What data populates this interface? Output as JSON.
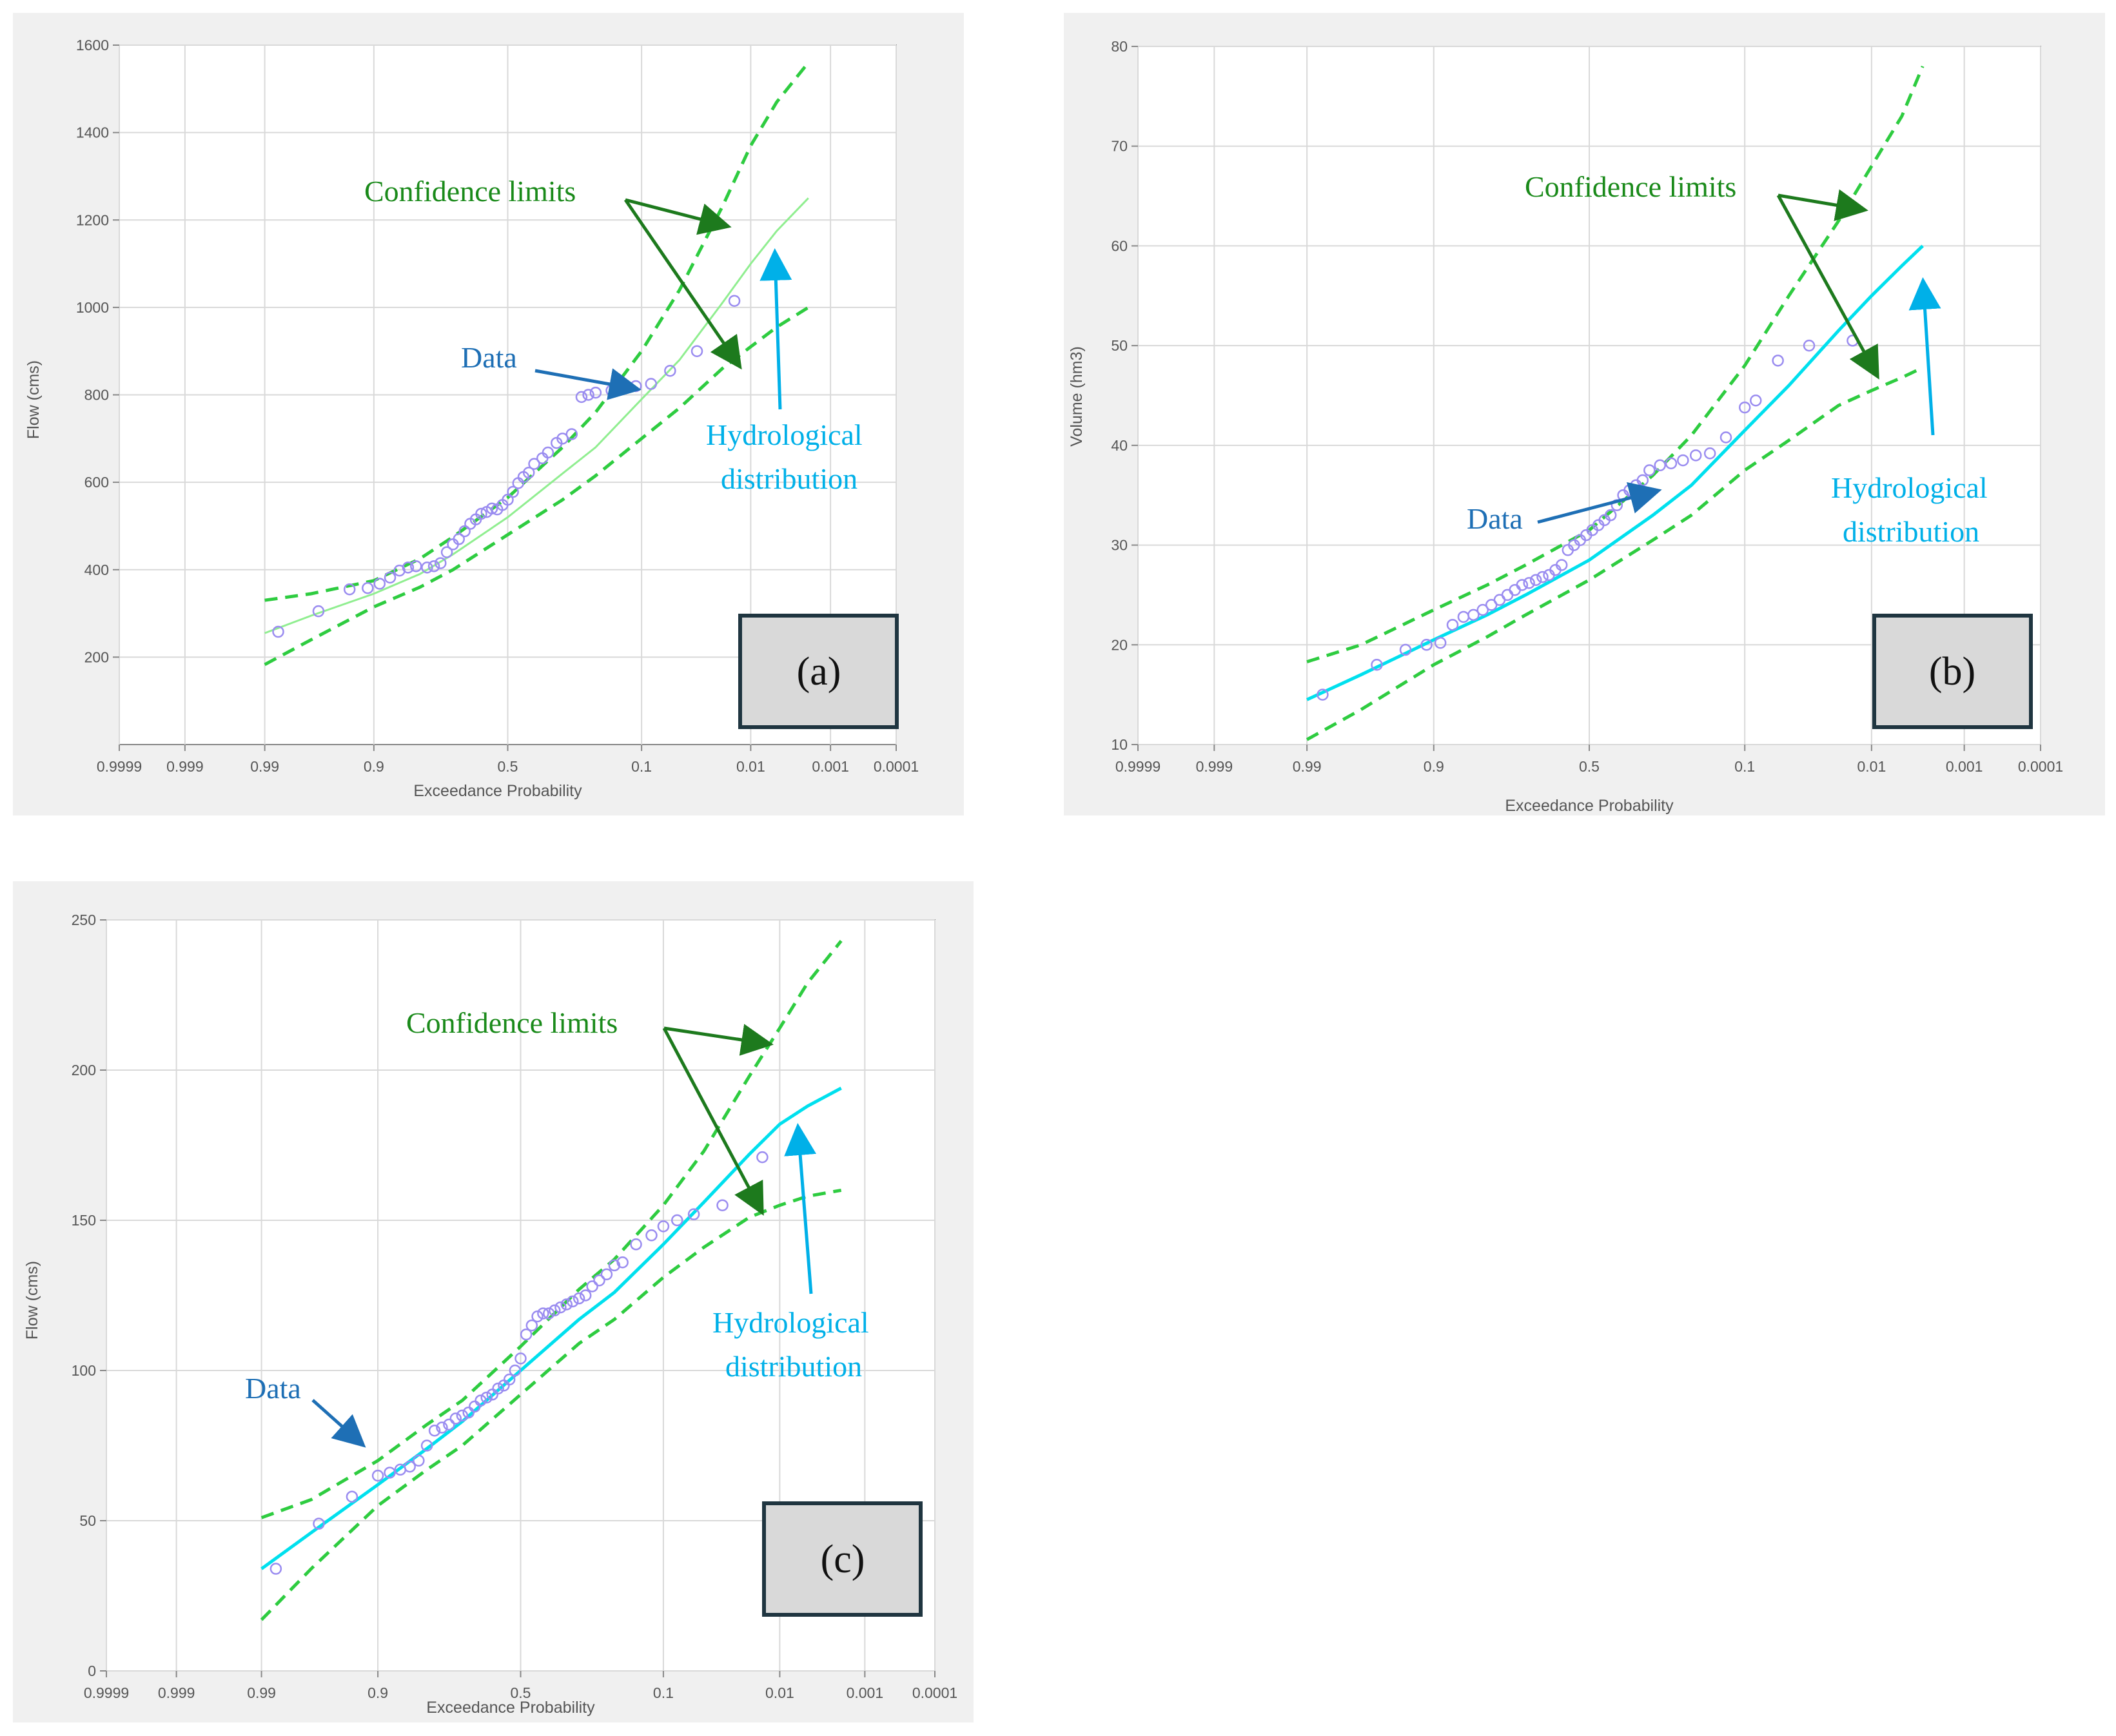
{
  "colors": {
    "confidence": "#2ecc40",
    "confidence_label": "#1a8a1a",
    "confidence_arrow": "#1d7a1d",
    "fit_a": "#90ee90",
    "fit_bc": "#00e0ee",
    "distribution_label": "#00b0e8",
    "data_marker": "#9a8cf0",
    "data_label": "#1e6fb5",
    "grid": "#d9d9d9",
    "panel_bg": "#f0f0f0"
  },
  "chart_data": [
    {
      "type": "scatter",
      "panel_label": "(a)",
      "xlabel": "Exceedance Probability",
      "ylabel": "Flow (cms)",
      "x_scale": "normal-probability (reversed)",
      "x_ticks": [
        "0.9999",
        "0.999",
        "0.99",
        "0.9",
        "0.5",
        "0.1",
        "0.01",
        "0.001",
        "0.0001"
      ],
      "x_tick_values": [
        0.9999,
        0.999,
        0.99,
        0.9,
        0.5,
        0.1,
        0.01,
        0.001,
        0.0001
      ],
      "y_ticks": [
        "200",
        "400",
        "600",
        "800",
        "1000",
        "1200",
        "1400",
        "1600"
      ],
      "ylim": [
        0,
        1600
      ],
      "grid": true,
      "annotations": {
        "confidence": "Confidence limits",
        "data": "Data",
        "distribution_line1": "Hydrological",
        "distribution_line2": "distribution"
      },
      "series": [
        {
          "name": "Data",
          "kind": "markers",
          "x": [
            0.986,
            0.965,
            0.935,
            0.91,
            0.89,
            0.87,
            0.85,
            0.83,
            0.81,
            0.78,
            0.76,
            0.74,
            0.72,
            0.7,
            0.68,
            0.66,
            0.64,
            0.62,
            0.6,
            0.58,
            0.56,
            0.54,
            0.52,
            0.5,
            0.48,
            0.46,
            0.44,
            0.42,
            0.4,
            0.37,
            0.35,
            0.32,
            0.3,
            0.27,
            0.24,
            0.22,
            0.2,
            0.16,
            0.13,
            0.11,
            0.085,
            0.06,
            0.035,
            0.015
          ],
          "y": [
            258,
            305,
            355,
            358,
            368,
            382,
            398,
            405,
            408,
            405,
            408,
            415,
            440,
            458,
            470,
            488,
            505,
            515,
            528,
            532,
            540,
            538,
            548,
            560,
            578,
            598,
            612,
            622,
            642,
            655,
            668,
            690,
            700,
            710,
            795,
            800,
            805,
            810,
            815,
            820,
            825,
            855,
            900,
            1015
          ]
        },
        {
          "name": "Hydrological distribution",
          "kind": "line",
          "x": [
            0.99,
            0.97,
            0.9,
            0.8,
            0.7,
            0.5,
            0.3,
            0.2,
            0.1,
            0.05,
            0.02,
            0.01,
            0.005,
            0.002
          ],
          "y": [
            255,
            295,
            345,
            390,
            435,
            520,
            620,
            680,
            790,
            880,
            1010,
            1100,
            1175,
            1250
          ]
        },
        {
          "name": "Upper confidence limit",
          "kind": "dashed",
          "x": [
            0.99,
            0.97,
            0.9,
            0.8,
            0.7,
            0.5,
            0.3,
            0.2,
            0.1,
            0.05,
            0.02,
            0.01,
            0.005,
            0.002
          ],
          "y": [
            330,
            345,
            375,
            425,
            475,
            565,
            680,
            760,
            900,
            1040,
            1230,
            1370,
            1470,
            1560
          ]
        },
        {
          "name": "Lower confidence limit",
          "kind": "dashed",
          "x": [
            0.99,
            0.97,
            0.9,
            0.8,
            0.7,
            0.5,
            0.3,
            0.2,
            0.1,
            0.05,
            0.02,
            0.01,
            0.005,
            0.002
          ],
          "y": [
            183,
            240,
            315,
            360,
            400,
            480,
            560,
            615,
            700,
            770,
            860,
            910,
            955,
            1000
          ]
        }
      ]
    },
    {
      "type": "scatter",
      "panel_label": "(b)",
      "xlabel": "Exceedance Probability",
      "ylabel": "Volume (hm3)",
      "x_scale": "normal-probability (reversed)",
      "x_ticks": [
        "0.9999",
        "0.999",
        "0.99",
        "0.9",
        "0.5",
        "0.1",
        "0.01",
        "0.001",
        "0.0001"
      ],
      "x_tick_values": [
        0.9999,
        0.999,
        0.99,
        0.9,
        0.5,
        0.1,
        0.01,
        0.001,
        0.0001
      ],
      "y_ticks": [
        "10",
        "20",
        "30",
        "40",
        "50",
        "60",
        "70",
        "80"
      ],
      "ylim": [
        10,
        80
      ],
      "grid": true,
      "annotations": {
        "confidence": "Confidence limits",
        "data": "Data",
        "distribution_line1": "Hydrological",
        "distribution_line2": "distribution"
      },
      "series": [
        {
          "name": "Data",
          "kind": "markers",
          "x": [
            0.986,
            0.96,
            0.935,
            0.91,
            0.89,
            0.87,
            0.85,
            0.83,
            0.81,
            0.79,
            0.77,
            0.75,
            0.73,
            0.71,
            0.69,
            0.67,
            0.65,
            0.63,
            0.61,
            0.59,
            0.57,
            0.55,
            0.53,
            0.51,
            0.49,
            0.47,
            0.45,
            0.43,
            0.41,
            0.39,
            0.37,
            0.35,
            0.33,
            0.31,
            0.28,
            0.25,
            0.22,
            0.19,
            0.16,
            0.13,
            0.1,
            0.085,
            0.06,
            0.035,
            0.015
          ],
          "y": [
            15,
            18,
            19.5,
            20,
            20.2,
            22,
            22.8,
            23,
            23.5,
            24,
            24.5,
            25,
            25.5,
            26,
            26.2,
            26.5,
            26.8,
            27,
            27.5,
            28,
            29.5,
            30,
            30.5,
            31,
            31.5,
            32,
            32.5,
            33,
            34,
            35,
            35.5,
            36,
            36.5,
            37.5,
            38,
            38.2,
            38.5,
            39,
            39.2,
            40.8,
            43.8,
            44.5,
            48.5,
            50,
            50.5
          ]
        },
        {
          "name": "Hydrological distribution",
          "kind": "line",
          "x": [
            0.99,
            0.97,
            0.9,
            0.8,
            0.7,
            0.5,
            0.3,
            0.2,
            0.1,
            0.05,
            0.02,
            0.01,
            0.005,
            0.003
          ],
          "y": [
            14.5,
            17,
            20.5,
            23,
            25,
            28.5,
            33,
            36,
            41.5,
            46,
            51.5,
            55,
            58,
            60
          ]
        },
        {
          "name": "Upper confidence limit",
          "kind": "dashed",
          "x": [
            0.99,
            0.97,
            0.9,
            0.8,
            0.7,
            0.5,
            0.3,
            0.2,
            0.1,
            0.05,
            0.02,
            0.01,
            0.005,
            0.003
          ],
          "y": [
            18.3,
            20,
            23.5,
            26,
            28,
            31.5,
            37,
            41,
            48,
            55,
            62.5,
            68,
            73,
            78
          ]
        },
        {
          "name": "Lower confidence limit",
          "kind": "dashed",
          "x": [
            0.99,
            0.97,
            0.9,
            0.8,
            0.7,
            0.5,
            0.3,
            0.2,
            0.1,
            0.05,
            0.02,
            0.01,
            0.005,
            0.003
          ],
          "y": [
            10.5,
            13.5,
            18,
            20.8,
            23,
            26.5,
            30.5,
            33,
            37.5,
            40.5,
            44,
            45.5,
            46.8,
            47.8
          ]
        }
      ]
    },
    {
      "type": "scatter",
      "panel_label": "(c)",
      "xlabel": "Exceedance Probability",
      "ylabel": "Flow (cms)",
      "x_scale": "normal-probability (reversed)",
      "x_ticks": [
        "0.9999",
        "0.999",
        "0.99",
        "0.9",
        "0.5",
        "0.1",
        "0.01",
        "0.001",
        "0.0001"
      ],
      "x_tick_values": [
        0.9999,
        0.999,
        0.99,
        0.9,
        0.5,
        0.1,
        0.01,
        0.001,
        0.0001
      ],
      "y_ticks": [
        "0",
        "50",
        "100",
        "150",
        "200",
        "250"
      ],
      "ylim": [
        0,
        250
      ],
      "grid": true,
      "annotations": {
        "confidence": "Confidence limits",
        "data": "Data",
        "distribution_line1": "Hydrological",
        "distribution_line2": "distribution"
      },
      "series": [
        {
          "name": "Data",
          "kind": "markers",
          "x": [
            0.986,
            0.965,
            0.935,
            0.9,
            0.88,
            0.86,
            0.84,
            0.82,
            0.8,
            0.78,
            0.76,
            0.74,
            0.72,
            0.7,
            0.68,
            0.66,
            0.64,
            0.62,
            0.6,
            0.58,
            0.56,
            0.54,
            0.52,
            0.5,
            0.48,
            0.46,
            0.44,
            0.42,
            0.4,
            0.38,
            0.36,
            0.34,
            0.32,
            0.3,
            0.28,
            0.26,
            0.24,
            0.22,
            0.2,
            0.18,
            0.15,
            0.12,
            0.1,
            0.08,
            0.06,
            0.035,
            0.015
          ],
          "y": [
            34,
            49,
            58,
            65,
            66,
            67,
            68,
            70,
            75,
            80,
            81,
            82,
            84,
            85,
            86,
            88,
            90,
            91,
            92,
            94,
            95,
            97,
            100,
            104,
            112,
            115,
            118,
            119,
            119,
            120,
            121,
            122,
            123,
            124,
            125,
            128,
            130,
            132,
            135,
            136,
            142,
            145,
            148,
            150,
            152,
            155,
            171
          ]
        },
        {
          "name": "Hydrological distribution",
          "kind": "line",
          "x": [
            0.99,
            0.97,
            0.9,
            0.8,
            0.7,
            0.5,
            0.3,
            0.2,
            0.1,
            0.05,
            0.02,
            0.01,
            0.005,
            0.002
          ],
          "y": [
            34,
            46,
            62,
            74,
            83,
            100,
            117,
            126,
            142,
            156,
            172,
            182,
            188,
            194
          ]
        },
        {
          "name": "Upper confidence limit",
          "kind": "dashed",
          "x": [
            0.99,
            0.97,
            0.9,
            0.8,
            0.7,
            0.5,
            0.3,
            0.2,
            0.1,
            0.05,
            0.02,
            0.01,
            0.005,
            0.002
          ],
          "y": [
            51,
            57,
            70,
            82,
            90,
            108,
            127,
            137,
            155,
            173,
            198,
            214,
            229,
            243
          ]
        },
        {
          "name": "Lower confidence limit",
          "kind": "dashed",
          "x": [
            0.99,
            0.97,
            0.9,
            0.8,
            0.7,
            0.5,
            0.3,
            0.2,
            0.1,
            0.05,
            0.02,
            0.01,
            0.005,
            0.002
          ],
          "y": [
            17,
            34,
            55,
            67,
            75,
            92,
            109,
            117,
            131,
            141,
            151,
            155,
            158,
            160
          ]
        }
      ]
    }
  ]
}
